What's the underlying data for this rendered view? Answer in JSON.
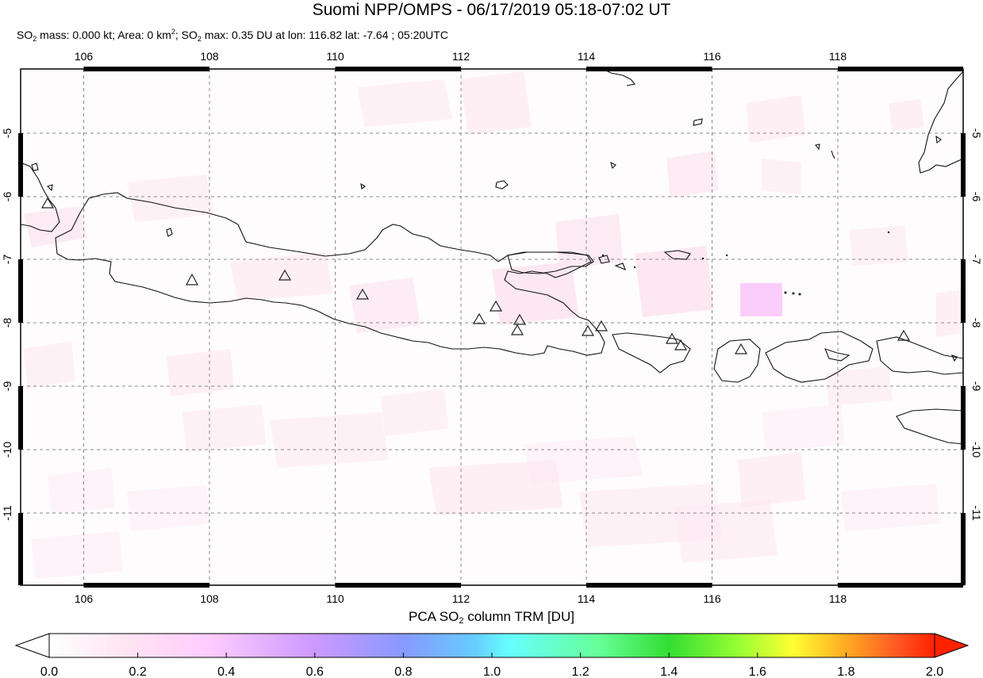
{
  "header": {
    "title": "Suomi NPP/OMPS - 06/17/2019 05:18-07:02 UT",
    "mass_prefix": "SO",
    "mass_sub": "2",
    "mass_text": " mass: 0.000 kt; Area: 0 km",
    "area_sup": "2",
    "max_prefix": "; SO",
    "max_sub": "2",
    "max_text": " max: 0.35 DU at lon: 116.82 lat: -7.64 ; 05:20UTC"
  },
  "map": {
    "lon_range": [
      105,
      120
    ],
    "lat_range": [
      -12.1,
      -4.0
    ],
    "lon_ticks": [
      "106",
      "108",
      "110",
      "112",
      "114",
      "116",
      "118"
    ],
    "lat_ticks": [
      "-5",
      "-6",
      "-7",
      "-8",
      "-9",
      "-10",
      "-11"
    ],
    "grid": "dashed",
    "volcano_marker": "triangle-icon"
  },
  "colorbar": {
    "label_prefix": "PCA SO",
    "label_sub": "2",
    "label_suffix": " column TRM [DU]",
    "tick_labels": [
      "0.0",
      "0.2",
      "0.4",
      "0.6",
      "0.8",
      "1.0",
      "1.2",
      "1.4",
      "1.6",
      "1.8",
      "2.0"
    ],
    "range": [
      0.0,
      2.0
    ],
    "colors": [
      "#ffffff",
      "#ffe6f2",
      "#ffccff",
      "#cc99ff",
      "#8899ff",
      "#66ccff",
      "#66ffff",
      "#66ff99",
      "#33dd33",
      "#99ff33",
      "#ffff33",
      "#ffaa22",
      "#ff5522",
      "#ff2200"
    ]
  }
}
